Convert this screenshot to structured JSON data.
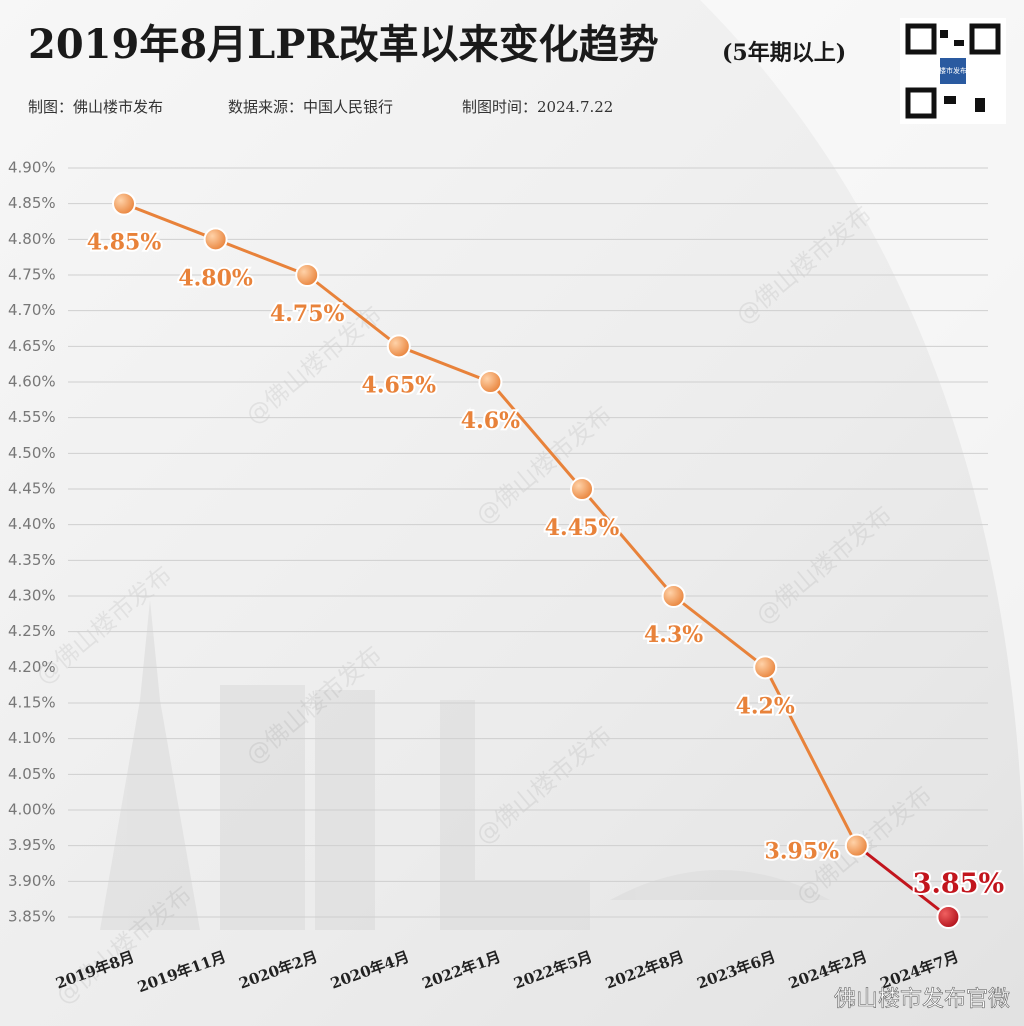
{
  "chart_data": {
    "type": "line",
    "title": "2019年8月LPR改革以来变化趋势",
    "subtitle": "(5年期以上)",
    "credits": [
      "制图：佛山楼市发布",
      "数据来源：中国人民银行",
      "制图时间：2024.7.22"
    ],
    "watermark": "@佛山楼市发布",
    "footer": "佛山楼市发布官微",
    "qr_label": "楼市发布",
    "categories": [
      "2019年8月",
      "2019年11月",
      "2020年2月",
      "2020年4月",
      "2022年1月",
      "2022年5月",
      "2022年8月",
      "2023年6月",
      "2024年2月",
      "2024年7月"
    ],
    "series": [
      {
        "values": [
          4.85,
          4.8,
          4.75,
          4.65,
          4.6,
          4.45,
          4.3,
          4.2,
          3.95,
          3.85
        ],
        "value_labels": [
          "4.85%",
          "4.80%",
          "4.75%",
          "4.65%",
          "4.6%",
          "4.45%",
          "4.3%",
          "4.2%",
          "3.95%",
          "3.85%"
        ],
        "colors": [
          "#e8823a",
          "#e8823a",
          "#e8823a",
          "#e8823a",
          "#e8823a",
          "#e8823a",
          "#e8823a",
          "#e8823a",
          "#e8823a",
          "#c2151d"
        ]
      }
    ],
    "ylim": [
      3.85,
      4.9
    ],
    "yticks": [
      {
        "value": 3.85,
        "label": "3.85%"
      },
      {
        "value": 3.9,
        "label": "3.90%"
      },
      {
        "value": 3.95,
        "label": "3.95%"
      },
      {
        "value": 4.0,
        "label": "4.00%"
      },
      {
        "value": 4.05,
        "label": "4.05%"
      },
      {
        "value": 4.1,
        "label": "4.10%"
      },
      {
        "value": 4.15,
        "label": "4.15%"
      },
      {
        "value": 4.2,
        "label": "4.20%"
      },
      {
        "value": 4.25,
        "label": "4.25%"
      },
      {
        "value": 4.3,
        "label": "4.30%"
      },
      {
        "value": 4.35,
        "label": "4.35%"
      },
      {
        "value": 4.4,
        "label": "4.40%"
      },
      {
        "value": 4.45,
        "label": "4.45%"
      },
      {
        "value": 4.5,
        "label": "4.50%"
      },
      {
        "value": 4.55,
        "label": "4.55%"
      },
      {
        "value": 4.6,
        "label": "4.60%"
      },
      {
        "value": 4.65,
        "label": "4.65%"
      },
      {
        "value": 4.7,
        "label": "4.70%"
      },
      {
        "value": 4.75,
        "label": "4.75%"
      },
      {
        "value": 4.8,
        "label": "4.80%"
      },
      {
        "value": 4.85,
        "label": "4.85%"
      },
      {
        "value": 4.9,
        "label": "4.90%"
      }
    ],
    "grid": true
  }
}
